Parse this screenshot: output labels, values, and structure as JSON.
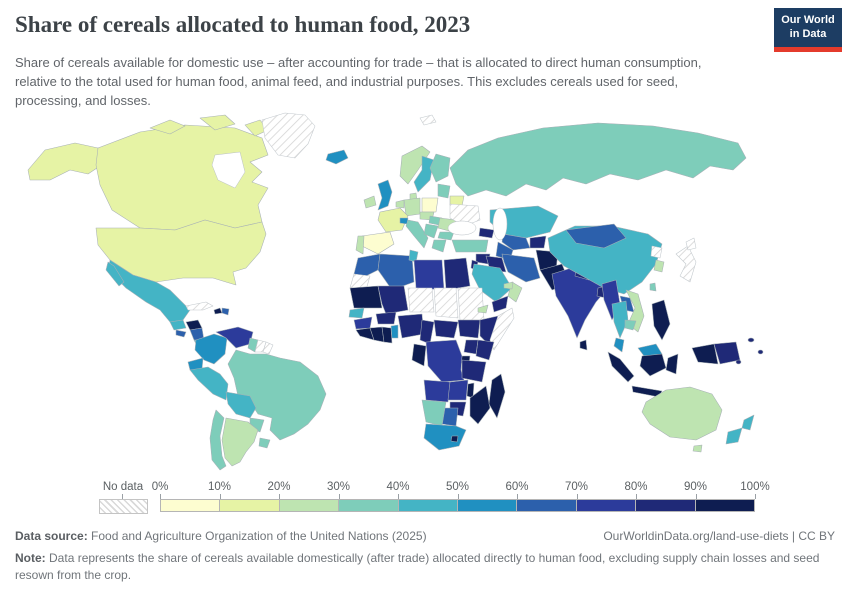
{
  "header": {
    "title": "Share of cereals allocated to human food, 2023",
    "subtitle": "Share of cereals available for domestic use – after accounting for trade – that is allocated to direct human consumption, relative to the total used for human food, animal feed, and industrial purposes. This excludes cereals used for seed, processing, and losses.",
    "logo_line1": "Our World",
    "logo_line2": "in Data",
    "logo_bg": "#1d3d63",
    "logo_red": "#e43b2c"
  },
  "legend": {
    "no_data_label": "No data",
    "ticks": [
      "0%",
      "10%",
      "20%",
      "30%",
      "40%",
      "50%",
      "60%",
      "70%",
      "80%",
      "90%",
      "100%"
    ],
    "colors": [
      "#fdfdd0",
      "#e6f3a5",
      "#bee4b1",
      "#7ecdba",
      "#44b4c5",
      "#2090c1",
      "#2c60ac",
      "#2c3b9b",
      "#1f2977",
      "#0e1d51"
    ],
    "bucket_labels": [
      "0–10%",
      "10–20%",
      "20–30%",
      "30–40%",
      "40–50%",
      "50–60%",
      "60–70%",
      "70–80%",
      "80–90%",
      "90–100%"
    ]
  },
  "footer": {
    "source_label": "Data source:",
    "source_text": "Food and Agriculture Organization of the United Nations (2025)",
    "link": "OurWorldinData.org/land-use-diets | CC BY",
    "note_label": "Note:",
    "note_text": "Data represents the share of cereals available domestically (after trade) allocated directly to human food, excluding supply chain losses and seed resown from the crop."
  },
  "chart_data": {
    "type": "choropleth",
    "title": "Share of cereals allocated to human food, 2023",
    "unit": "%",
    "legend_position": "bottom",
    "no_data_pattern": "diagonal-hatch",
    "regions": {
      "canada": {
        "n": "Canada",
        "b": 1
      },
      "alaska": {
        "n": "United States (Alaska)",
        "b": 1
      },
      "usa": {
        "n": "United States",
        "b": 1
      },
      "greenland": {
        "n": "Greenland",
        "b": null
      },
      "mexico": {
        "n": "Mexico",
        "b": 4
      },
      "guatemala": {
        "n": "Guatemala",
        "b": 4
      },
      "honduras": {
        "n": "Honduras",
        "b": 9
      },
      "el-salvador": {
        "n": "El Salvador",
        "b": 6
      },
      "nicaragua": {
        "n": "Nicaragua",
        "b": 6
      },
      "costa-rica": {
        "n": "Costa Rica",
        "b": 4
      },
      "panama": {
        "n": "Panama",
        "b": 4
      },
      "cuba": {
        "n": "Cuba",
        "b": null
      },
      "haiti": {
        "n": "Haiti",
        "b": 9
      },
      "dominican-republic": {
        "n": "Dominican Republic",
        "b": 6
      },
      "colombia": {
        "n": "Colombia",
        "b": 5
      },
      "venezuela": {
        "n": "Venezuela",
        "b": 7
      },
      "guyana": {
        "n": "Guyana",
        "b": 3
      },
      "suriname": {
        "n": "Suriname",
        "b": null
      },
      "french-guiana": {
        "n": "French Guiana",
        "b": null
      },
      "ecuador": {
        "n": "Ecuador",
        "b": 5
      },
      "peru": {
        "n": "Peru",
        "b": 4
      },
      "brazil": {
        "n": "Brazil",
        "b": 3
      },
      "bolivia": {
        "n": "Bolivia",
        "b": 4
      },
      "paraguay": {
        "n": "Paraguay",
        "b": 3
      },
      "uruguay": {
        "n": "Uruguay",
        "b": 3
      },
      "argentina": {
        "n": "Argentina",
        "b": 2
      },
      "chile": {
        "n": "Chile",
        "b": 3
      },
      "iceland": {
        "n": "Iceland",
        "b": 5
      },
      "ireland": {
        "n": "Ireland",
        "b": 2
      },
      "uk": {
        "n": "United Kingdom",
        "b": 5
      },
      "norway": {
        "n": "Norway",
        "b": 2
      },
      "sweden": {
        "n": "Sweden",
        "b": 4
      },
      "finland": {
        "n": "Finland",
        "b": 3
      },
      "denmark": {
        "n": "Denmark",
        "b": 2
      },
      "baltics": {
        "n": "Baltic states",
        "b": 3
      },
      "belarus": {
        "n": "Belarus",
        "b": 1
      },
      "poland": {
        "n": "Poland",
        "b": 0
      },
      "germany": {
        "n": "Germany",
        "b": 2
      },
      "benelux": {
        "n": "Netherlands / Belgium",
        "b": 2
      },
      "france": {
        "n": "France",
        "b": 1
      },
      "spain": {
        "n": "Spain",
        "b": 0
      },
      "portugal": {
        "n": "Portugal",
        "b": 2
      },
      "italy": {
        "n": "Italy",
        "b": 3
      },
      "switzerland": {
        "n": "Switzerland",
        "b": 5
      },
      "austria-czech": {
        "n": "Austria / Czechia",
        "b": 2
      },
      "hungary": {
        "n": "Hungary",
        "b": 3
      },
      "romania": {
        "n": "Romania",
        "b": 2
      },
      "balkans": {
        "n": "Western Balkans",
        "b": 3
      },
      "greece": {
        "n": "Greece",
        "b": 3
      },
      "bulgaria": {
        "n": "Bulgaria",
        "b": 3
      },
      "ukraine": {
        "n": "Ukraine",
        "b": null
      },
      "russia": {
        "n": "Russia",
        "b": 3
      },
      "svalbard": {
        "n": "Svalbard",
        "b": null
      },
      "kazakhstan": {
        "n": "Kazakhstan",
        "b": 4
      },
      "uzbekistan": {
        "n": "Uzbekistan",
        "b": 6
      },
      "turkmenistan": {
        "n": "Turkmenistan",
        "b": 6
      },
      "kyrgyzstan-tajikistan": {
        "n": "Kyrgyzstan / Tajikistan",
        "b": 8
      },
      "caucasus": {
        "n": "Caucasus states",
        "b": 8
      },
      "turkey": {
        "n": "Turkey",
        "b": 3
      },
      "syria": {
        "n": "Syria",
        "b": 8
      },
      "iraq": {
        "n": "Iraq",
        "b": 8
      },
      "iran": {
        "n": "Iran",
        "b": 6
      },
      "israel-jordan": {
        "n": "Israel / Jordan",
        "b": 8
      },
      "saudi-arabia": {
        "n": "Saudi Arabia",
        "b": 4
      },
      "yemen": {
        "n": "Yemen",
        "b": 8
      },
      "oman": {
        "n": "Oman",
        "b": 2
      },
      "uae": {
        "n": "United Arab Emirates",
        "b": 2
      },
      "afghanistan": {
        "n": "Afghanistan",
        "b": 9
      },
      "pakistan": {
        "n": "Pakistan",
        "b": 9
      },
      "india": {
        "n": "India",
        "b": 7
      },
      "nepal": {
        "n": "Nepal",
        "b": 8
      },
      "bangladesh": {
        "n": "Bangladesh",
        "b": 8
      },
      "sri-lanka": {
        "n": "Sri Lanka",
        "b": 9
      },
      "china": {
        "n": "China",
        "b": 4
      },
      "mongolia": {
        "n": "Mongolia",
        "b": 6
      },
      "north-korea": {
        "n": "North Korea",
        "b": null
      },
      "south-korea": {
        "n": "South Korea",
        "b": 2
      },
      "japan": {
        "n": "Japan",
        "b": null
      },
      "taiwan": {
        "n": "Taiwan",
        "b": 3
      },
      "myanmar": {
        "n": "Myanmar",
        "b": 7
      },
      "thailand": {
        "n": "Thailand",
        "b": 4
      },
      "laos": {
        "n": "Laos",
        "b": 6
      },
      "vietnam": {
        "n": "Vietnam",
        "b": 2
      },
      "cambodia": {
        "n": "Cambodia",
        "b": 3
      },
      "malaysia": {
        "n": "Malaysia",
        "b": 5
      },
      "indonesia": {
        "n": "Indonesia",
        "b": 9
      },
      "philippines": {
        "n": "Philippines",
        "b": 9
      },
      "papua-new-guinea": {
        "n": "Papua New Guinea",
        "b": 8
      },
      "fiji": {
        "n": "Pacific island states",
        "b": 8
      },
      "australia": {
        "n": "Australia",
        "b": 2
      },
      "new-zealand": {
        "n": "New Zealand",
        "b": 4
      },
      "morocco": {
        "n": "Morocco",
        "b": 6
      },
      "western-sahara": {
        "n": "Western Sahara",
        "b": null
      },
      "algeria": {
        "n": "Algeria",
        "b": 6
      },
      "tunisia": {
        "n": "Tunisia",
        "b": 4
      },
      "libya": {
        "n": "Libya",
        "b": 7
      },
      "egypt": {
        "n": "Egypt",
        "b": 8
      },
      "mauritania": {
        "n": "Mauritania",
        "b": 9
      },
      "mali": {
        "n": "Mali",
        "b": 8
      },
      "niger": {
        "n": "Niger",
        "b": null
      },
      "chad": {
        "n": "Chad",
        "b": null
      },
      "sudan": {
        "n": "Sudan",
        "b": null
      },
      "eritrea": {
        "n": "Eritrea",
        "b": 2
      },
      "senegal": {
        "n": "Senegal",
        "b": 4
      },
      "guinea": {
        "n": "Guinea",
        "b": 7
      },
      "sierra-leone-liberia": {
        "n": "Sierra Leone / Liberia",
        "b": 9
      },
      "cote-divoire": {
        "n": "Côte d'Ivoire",
        "b": 9
      },
      "ghana": {
        "n": "Ghana",
        "b": 9
      },
      "benin-togo": {
        "n": "Benin / Togo",
        "b": 5
      },
      "burkina-faso": {
        "n": "Burkina Faso",
        "b": 8
      },
      "nigeria": {
        "n": "Nigeria",
        "b": 8
      },
      "cameroon": {
        "n": "Cameroon",
        "b": 8
      },
      "central-african-republic": {
        "n": "Central African Republic",
        "b": 8
      },
      "south-sudan": {
        "n": "South Sudan",
        "b": 8
      },
      "ethiopia": {
        "n": "Ethiopia",
        "b": 8
      },
      "somalia": {
        "n": "Somalia",
        "b": null
      },
      "kenya": {
        "n": "Kenya",
        "b": 8
      },
      "uganda": {
        "n": "Uganda",
        "b": 8
      },
      "rwanda-burundi": {
        "n": "Rwanda / Burundi",
        "b": 9
      },
      "drc": {
        "n": "Democratic Republic of Congo",
        "b": 7
      },
      "gabon-congo": {
        "n": "Gabon / Congo",
        "b": 9
      },
      "tanzania": {
        "n": "Tanzania",
        "b": 8
      },
      "angola": {
        "n": "Angola",
        "b": 7
      },
      "zambia": {
        "n": "Zambia",
        "b": 7
      },
      "malawi": {
        "n": "Malawi",
        "b": 9
      },
      "mozambique": {
        "n": "Mozambique",
        "b": 9
      },
      "zimbabwe": {
        "n": "Zimbabwe",
        "b": 8
      },
      "botswana": {
        "n": "Botswana",
        "b": 6
      },
      "namibia": {
        "n": "Namibia",
        "b": 3
      },
      "south-africa": {
        "n": "South Africa",
        "b": 5
      },
      "lesotho": {
        "n": "Lesotho",
        "b": 9
      },
      "madagascar": {
        "n": "Madagascar",
        "b": 9
      }
    }
  }
}
